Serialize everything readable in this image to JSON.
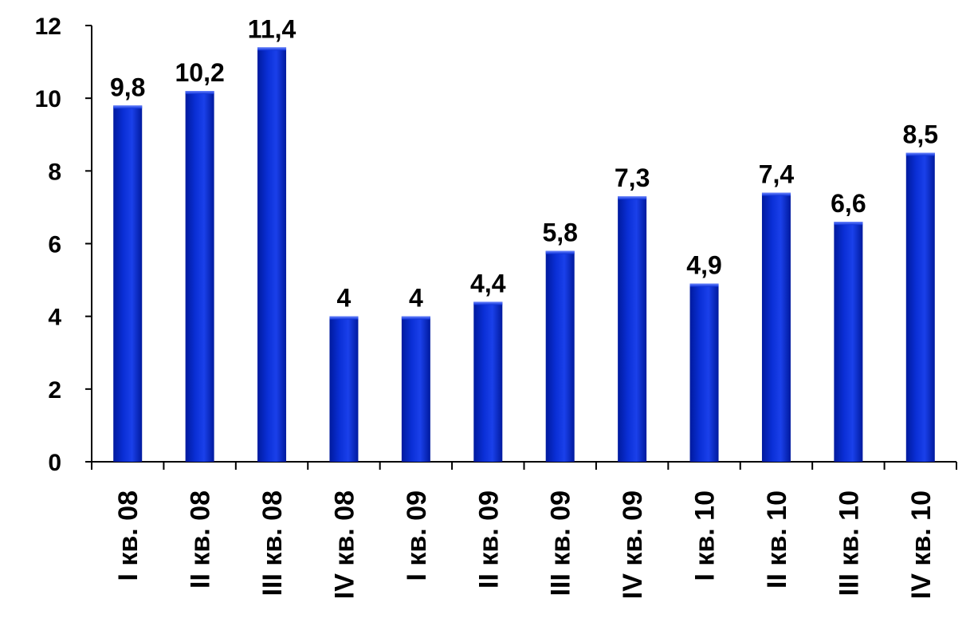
{
  "chart_data": {
    "type": "bar",
    "title": "",
    "xlabel": "",
    "ylabel": "",
    "categories": [
      "I кв. 08",
      "II кв. 08",
      "III кв. 08",
      "IV кв. 08",
      "I кв. 09",
      "II кв. 09",
      "III кв. 09",
      "IV кв. 09",
      "I кв. 10",
      "II кв. 10",
      "III кв. 10",
      "IV кв. 10"
    ],
    "values": [
      9.8,
      10.2,
      11.4,
      4,
      4,
      4.4,
      5.8,
      7.3,
      4.9,
      7.4,
      6.6,
      8.5
    ],
    "data_labels": [
      "9,8",
      "10,2",
      "11,4",
      "4",
      "4",
      "4,4",
      "5,8",
      "7,3",
      "4,9",
      "7,4",
      "6,6",
      "8,5"
    ],
    "ylim": [
      0,
      12
    ],
    "y_ticks": [
      0,
      2,
      4,
      6,
      8,
      10,
      12
    ],
    "y_tick_labels": [
      "0",
      "2",
      "4",
      "6",
      "8",
      "10",
      "12"
    ],
    "grid": false,
    "legend": "none",
    "colors": {
      "bar": "#0a2fd6",
      "bar_dark": "#001a9e",
      "bar_light": "#4a6cff",
      "axis": "#000000"
    }
  }
}
